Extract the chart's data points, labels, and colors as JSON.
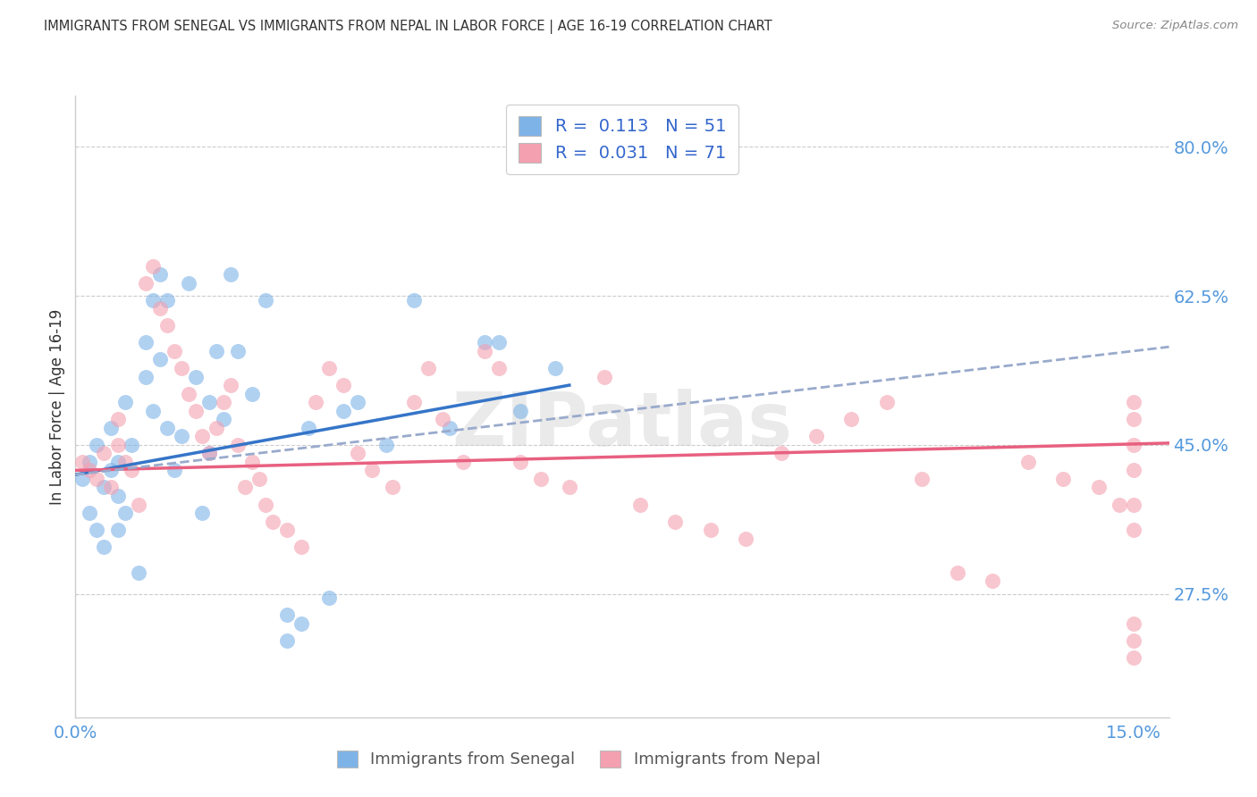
{
  "title": "IMMIGRANTS FROM SENEGAL VS IMMIGRANTS FROM NEPAL IN LABOR FORCE | AGE 16-19 CORRELATION CHART",
  "source": "Source: ZipAtlas.com",
  "ylabel": "In Labor Force | Age 16-19",
  "xlim": [
    0.0,
    0.155
  ],
  "ylim": [
    0.13,
    0.86
  ],
  "yticks": [
    0.275,
    0.45,
    0.625,
    0.8
  ],
  "ytick_labels": [
    "27.5%",
    "45.0%",
    "62.5%",
    "80.0%"
  ],
  "xticks": [
    0.0,
    0.025,
    0.05,
    0.075,
    0.1,
    0.125,
    0.15
  ],
  "xtick_labels": [
    "0.0%",
    "",
    "",
    "",
    "",
    "",
    "15.0%"
  ],
  "senegal_R": 0.113,
  "senegal_N": 51,
  "nepal_R": 0.031,
  "nepal_N": 71,
  "senegal_color": "#7EB3E8",
  "nepal_color": "#F4A0B0",
  "senegal_line_color": "#3575C8",
  "nepal_line_color": "#E86080",
  "dashed_line_color": "#99AACC",
  "bg_color": "#FFFFFF",
  "watermark": "ZIPatlas",
  "watermark_color": "#CCCCCC",
  "title_color": "#333333",
  "axis_label_color": "#333333",
  "tick_color": "#5599DD",
  "grid_color": "#CCCCCC",
  "senegal_line": {
    "x0": 0.0,
    "y0": 0.415,
    "x1": 0.07,
    "y1": 0.52
  },
  "nepal_line": {
    "x0": 0.0,
    "y0": 0.42,
    "x1": 0.155,
    "y1": 0.452
  },
  "dashed_line": {
    "x0": 0.0,
    "y0": 0.415,
    "x1": 0.155,
    "y1": 0.565
  },
  "senegal_x": [
    0.001,
    0.002,
    0.002,
    0.003,
    0.003,
    0.004,
    0.004,
    0.005,
    0.005,
    0.006,
    0.006,
    0.006,
    0.007,
    0.007,
    0.008,
    0.009,
    0.01,
    0.01,
    0.011,
    0.011,
    0.012,
    0.012,
    0.013,
    0.013,
    0.014,
    0.015,
    0.016,
    0.017,
    0.018,
    0.019,
    0.019,
    0.02,
    0.021,
    0.022,
    0.023,
    0.025,
    0.027,
    0.03,
    0.033,
    0.036,
    0.04,
    0.044,
    0.048,
    0.053,
    0.058,
    0.063,
    0.068,
    0.03,
    0.032,
    0.038,
    0.06
  ],
  "senegal_y": [
    0.41,
    0.37,
    0.43,
    0.35,
    0.45,
    0.33,
    0.4,
    0.42,
    0.47,
    0.35,
    0.43,
    0.39,
    0.5,
    0.37,
    0.45,
    0.3,
    0.53,
    0.57,
    0.49,
    0.62,
    0.55,
    0.65,
    0.47,
    0.62,
    0.42,
    0.46,
    0.64,
    0.53,
    0.37,
    0.5,
    0.44,
    0.56,
    0.48,
    0.65,
    0.56,
    0.51,
    0.62,
    0.25,
    0.47,
    0.27,
    0.5,
    0.45,
    0.62,
    0.47,
    0.57,
    0.49,
    0.54,
    0.22,
    0.24,
    0.49,
    0.57
  ],
  "nepal_x": [
    0.001,
    0.002,
    0.003,
    0.004,
    0.005,
    0.006,
    0.006,
    0.007,
    0.008,
    0.009,
    0.01,
    0.011,
    0.012,
    0.013,
    0.014,
    0.015,
    0.016,
    0.017,
    0.018,
    0.019,
    0.02,
    0.021,
    0.022,
    0.023,
    0.024,
    0.025,
    0.026,
    0.027,
    0.028,
    0.03,
    0.032,
    0.034,
    0.036,
    0.038,
    0.04,
    0.042,
    0.045,
    0.048,
    0.05,
    0.052,
    0.055,
    0.058,
    0.06,
    0.063,
    0.066,
    0.07,
    0.075,
    0.08,
    0.085,
    0.09,
    0.095,
    0.1,
    0.105,
    0.11,
    0.115,
    0.12,
    0.125,
    0.13,
    0.135,
    0.14,
    0.145,
    0.148,
    0.15,
    0.15,
    0.15,
    0.15,
    0.15,
    0.15,
    0.15,
    0.15,
    0.15
  ],
  "nepal_y": [
    0.43,
    0.42,
    0.41,
    0.44,
    0.4,
    0.45,
    0.48,
    0.43,
    0.42,
    0.38,
    0.64,
    0.66,
    0.61,
    0.59,
    0.56,
    0.54,
    0.51,
    0.49,
    0.46,
    0.44,
    0.47,
    0.5,
    0.52,
    0.45,
    0.4,
    0.43,
    0.41,
    0.38,
    0.36,
    0.35,
    0.33,
    0.5,
    0.54,
    0.52,
    0.44,
    0.42,
    0.4,
    0.5,
    0.54,
    0.48,
    0.43,
    0.56,
    0.54,
    0.43,
    0.41,
    0.4,
    0.53,
    0.38,
    0.36,
    0.35,
    0.34,
    0.44,
    0.46,
    0.48,
    0.5,
    0.41,
    0.3,
    0.29,
    0.43,
    0.41,
    0.4,
    0.38,
    0.35,
    0.38,
    0.42,
    0.45,
    0.48,
    0.5,
    0.2,
    0.22,
    0.24
  ]
}
